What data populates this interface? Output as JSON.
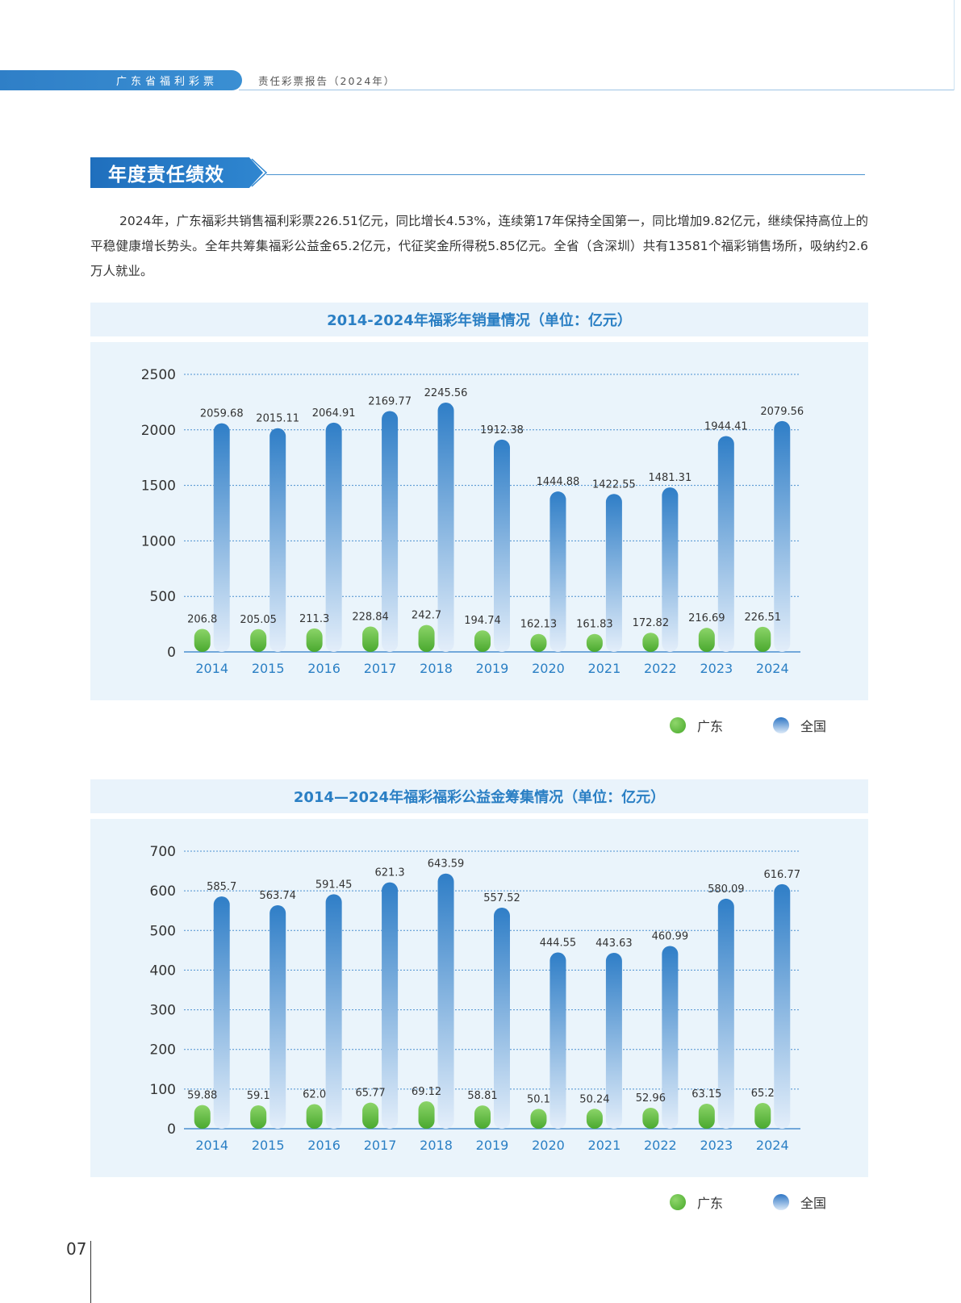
{
  "header": {
    "tab": "广东省福利彩票",
    "subtitle": "责任彩票报告（2024年）"
  },
  "section": {
    "title": "年度责任绩效",
    "paragraph": "2024年，广东福彩共销售福利彩票226.51亿元，同比增长4.53%，连续第17年保持全国第一，同比增加9.82亿元，继续保持高位上的平稳健康增长势头。全年共筹集福彩公益金65.2亿元，代征奖金所得税5.85亿元。全省（含深圳）共有13581个福彩销售场所，吸纳约2.6万人就业。"
  },
  "page_number": "07",
  "legend": {
    "gd": "广东",
    "national": "全国"
  },
  "colors": {
    "gd": "#5db83a",
    "national": "#2f7ec7",
    "axis_text": "#2a7fc4",
    "title": "#2a7fc4"
  },
  "chart_data": [
    {
      "type": "bar",
      "title": "2014-2024年福彩年销量情况（单位：亿元）",
      "categories": [
        "2014",
        "2015",
        "2016",
        "2017",
        "2018",
        "2019",
        "2020",
        "2021",
        "2022",
        "2023",
        "2024"
      ],
      "ylim": [
        0,
        2500
      ],
      "yticks": [
        "0",
        "500",
        "1000",
        "1500",
        "2000",
        "2500"
      ],
      "grid": true,
      "legend_position": "bottom-right",
      "series": [
        {
          "name": "广东",
          "values": [
            206.8,
            205.05,
            211.3,
            228.84,
            242.7,
            194.74,
            162.13,
            161.83,
            172.82,
            216.69,
            226.51
          ],
          "labels": [
            "206.8",
            "205.05",
            "211.3",
            "228.84",
            "242.7",
            "194.74",
            "162.13",
            "161.83",
            "172.82",
            "216.69",
            "226.51"
          ]
        },
        {
          "name": "全国",
          "values": [
            2059.68,
            2015.11,
            2064.91,
            2169.77,
            2245.56,
            1912.38,
            1444.88,
            1422.55,
            1481.31,
            1944.41,
            2079.56
          ],
          "labels": [
            "2059.68",
            "2015.11",
            "2064.91",
            "2169.77",
            "2245.56",
            "1912.38",
            "1444.88",
            "1422.55",
            "1481.31",
            "1944.41",
            "2079.56"
          ]
        }
      ]
    },
    {
      "type": "bar",
      "title": "2014—2024年福彩福彩公益金筹集情况（单位：亿元）",
      "categories": [
        "2014",
        "2015",
        "2016",
        "2017",
        "2018",
        "2019",
        "2020",
        "2021",
        "2022",
        "2023",
        "2024"
      ],
      "ylim": [
        0,
        700
      ],
      "yticks": [
        "0",
        "100",
        "200",
        "300",
        "400",
        "500",
        "600",
        "700"
      ],
      "grid": true,
      "legend_position": "bottom-right",
      "series": [
        {
          "name": "广东",
          "values": [
            59.88,
            59.1,
            62.0,
            65.77,
            69.12,
            58.81,
            50.1,
            50.24,
            52.96,
            63.15,
            65.2
          ],
          "labels": [
            "59.88",
            "59.1",
            "62.0",
            "65.77",
            "69.12",
            "58.81",
            "50.1",
            "50.24",
            "52.96",
            "63.15",
            "65.2"
          ]
        },
        {
          "name": "全国",
          "values": [
            585.7,
            563.74,
            591.45,
            621.3,
            643.59,
            557.52,
            444.55,
            443.63,
            460.99,
            580.09,
            616.77
          ],
          "labels": [
            "585.7",
            "563.74",
            "591.45",
            "621.3",
            "643.59",
            "557.52",
            "444.55",
            "443.63",
            "460.99",
            "580.09",
            "616.77"
          ]
        }
      ]
    }
  ]
}
